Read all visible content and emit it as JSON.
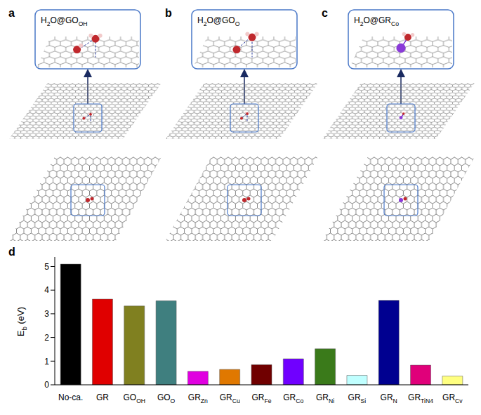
{
  "panels": [
    {
      "letter": "a",
      "label": "H2O@GOOH"
    },
    {
      "letter": "b",
      "label": "H2O@GOO"
    },
    {
      "letter": "c",
      "label": "H2O@GRCo"
    }
  ],
  "chart_panel": "d",
  "chart_data": {
    "type": "bar",
    "ylabel": "Eb (eV)",
    "categories": [
      "No-ca.",
      "GR",
      "GOOH",
      "GOO",
      "GRZn",
      "GRCu",
      "GRFe",
      "GRCo",
      "GRNi",
      "GRSi",
      "GRN",
      "GRTiN4",
      "GRCv"
    ],
    "values": [
      5.1,
      3.62,
      3.33,
      3.55,
      0.57,
      0.65,
      0.85,
      1.1,
      1.52,
      0.4,
      3.57,
      0.83,
      0.37
    ],
    "colors": [
      "#000000",
      "#e00000",
      "#808020",
      "#3f7f7f",
      "#e000e0",
      "#e07800",
      "#700000",
      "#7000ff",
      "#3a7a1a",
      "#c0ffff",
      "#000090",
      "#e0007a",
      "#ffff80"
    ],
    "ylim": [
      0,
      5.4
    ],
    "yticks": [
      0,
      1,
      2,
      3,
      4,
      5
    ],
    "grid": false
  }
}
